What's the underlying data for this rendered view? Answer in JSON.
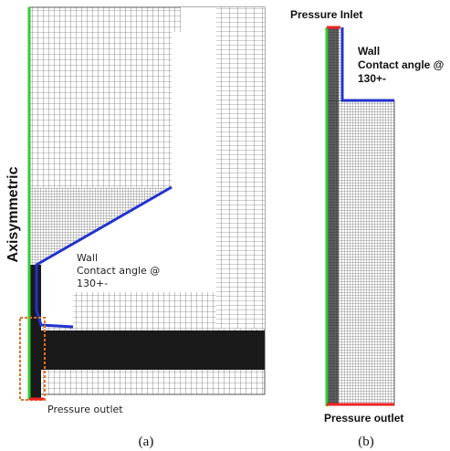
{
  "panel_a": {
    "side_label": "Axisymmetric",
    "wall_label": [
      "Wall",
      "Contact angle @",
      "130+-"
    ],
    "outlet_label": "Pressure outlet",
    "caption": "(a)"
  },
  "panel_b": {
    "inlet_label": "Pressure Inlet",
    "wall_label": [
      "Wall",
      "Contact angle @",
      "130+-"
    ],
    "outlet_label": "Pressure outlet",
    "caption": "(b)"
  }
}
